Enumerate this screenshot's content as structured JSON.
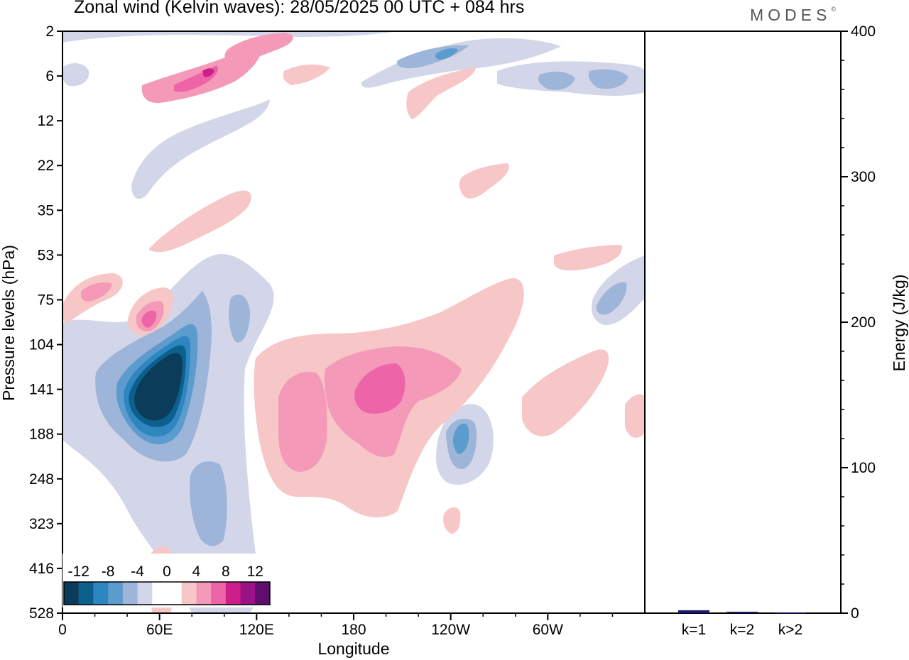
{
  "header": {
    "title": "Zonal wind (Kelvin waves):  28/05/2025  00 UTC  + 084 hrs",
    "logo": "MODES",
    "logo_mark": "©"
  },
  "chart_data": [
    {
      "type": "heatmap",
      "xlabel": "Longitude",
      "ylabel": "Pressure levels (hPa)",
      "x_ticks": [
        "0",
        "60E",
        "120E",
        "180",
        "120W",
        "60W"
      ],
      "y_ticks": [
        "2",
        "6",
        "12",
        "22",
        "35",
        "53",
        "75",
        "104",
        "141",
        "188",
        "248",
        "323",
        "416",
        "528"
      ],
      "y_scale": "log (pressure levels, top = 2 hPa)",
      "colorbar": {
        "labels": [
          "-12",
          "-8",
          "-4",
          "0",
          "4",
          "8",
          "12"
        ],
        "colors": [
          "#0b3d5b",
          "#0d5f8e",
          "#2e86c1",
          "#5b9bcd",
          "#9db5d8",
          "#d3d6e8",
          "#ffffff",
          "#ffffff",
          "#f7c6c6",
          "#f49ab8",
          "#ee64a8",
          "#cc1f8a",
          "#9b1187",
          "#5e0e6e"
        ]
      },
      "features": [
        {
          "name": "strong easterly anomaly",
          "lon": 60,
          "pressure": 141,
          "value": -14
        },
        {
          "name": "westerly anomaly",
          "lon": 195,
          "pressure": 141,
          "value": 8
        },
        {
          "name": "westerly anomaly",
          "lon": 62,
          "pressure": 104,
          "value": 6
        },
        {
          "name": "easterly anomaly",
          "lon": 245,
          "pressure": 188,
          "value": -6
        },
        {
          "name": "stratospheric westerly band",
          "lon": 90,
          "pressure": 6,
          "value": 8
        }
      ]
    },
    {
      "type": "bar",
      "categories": [
        "k=1",
        "k=2",
        "k>2"
      ],
      "values": [
        2,
        1,
        0.5
      ],
      "ylabel": "Energy (J/kg)",
      "y_ticks": [
        "0",
        "100",
        "200",
        "300",
        "400"
      ],
      "ylim": [
        0,
        400
      ],
      "bar_color": "#1a1a6e"
    }
  ]
}
